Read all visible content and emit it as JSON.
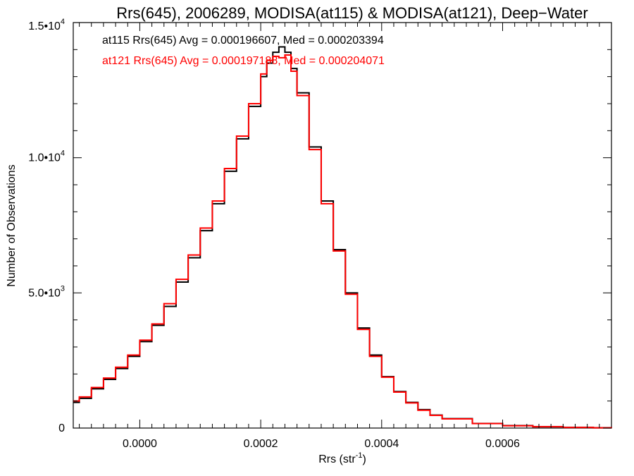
{
  "chart_data": {
    "type": "line",
    "title": "Rrs(645), 2006289, MODISA(at115) & MODISA(at121), Deep−Water",
    "xlabel": "Rrs (str",
    "xlabel_sup": "-1",
    "xlabel_end": ")",
    "ylabel": "Number of Observations",
    "xlim": [
      -0.00011,
      0.00078
    ],
    "ylim": [
      0,
      15000
    ],
    "x_ticks": [
      {
        "value": 0.0,
        "label": "0.0000"
      },
      {
        "value": 0.0002,
        "label": "0.0002"
      },
      {
        "value": 0.0004,
        "label": "0.0004"
      },
      {
        "value": 0.0006,
        "label": "0.0006"
      }
    ],
    "y_ticks": [
      {
        "value": 0,
        "label": "0"
      },
      {
        "value": 5000,
        "label": "5.0•10",
        "sup": "3"
      },
      {
        "value": 10000,
        "label": "1.0•10",
        "sup": "4"
      },
      {
        "value": 15000,
        "label": "1.5•10",
        "sup": "4"
      }
    ],
    "annotations": [
      {
        "text": "at115 Rrs(645) Avg = 0.000196607, Med = 0.000203394",
        "color": "#000000"
      },
      {
        "text": "at121 Rrs(645) Avg = 0.000197188, Med = 0.000204071",
        "color": "#ff0000"
      }
    ],
    "series": [
      {
        "color": "#000000",
        "x": [
          -0.00011,
          -0.0001,
          -8e-05,
          -6e-05,
          -4e-05,
          -2e-05,
          0.0,
          2e-05,
          4e-05,
          6e-05,
          8e-05,
          0.0001,
          0.00012,
          0.00014,
          0.00016,
          0.00018,
          0.0002,
          0.00021,
          0.00022,
          0.00023,
          0.00024,
          0.00025,
          0.00026,
          0.00028,
          0.0003,
          0.00032,
          0.00034,
          0.00036,
          0.00038,
          0.0004,
          0.00042,
          0.00044,
          0.00046,
          0.00048,
          0.0005,
          0.00055,
          0.0006,
          0.00065,
          0.0007,
          0.00075,
          0.00078
        ],
        "y": [
          950,
          1100,
          1450,
          1800,
          2200,
          2650,
          3200,
          3800,
          4500,
          5400,
          6300,
          7300,
          8300,
          9500,
          10700,
          11900,
          13000,
          13500,
          13900,
          14100,
          13900,
          13300,
          12400,
          10400,
          8400,
          6600,
          5000,
          3700,
          2700,
          1900,
          1350,
          950,
          680,
          480,
          350,
          170,
          90,
          50,
          25,
          10,
          5
        ]
      },
      {
        "color": "#ff0000",
        "x": [
          -0.00011,
          -0.0001,
          -8e-05,
          -6e-05,
          -4e-05,
          -2e-05,
          0.0,
          2e-05,
          4e-05,
          6e-05,
          8e-05,
          0.0001,
          0.00012,
          0.00014,
          0.00016,
          0.00018,
          0.0002,
          0.00021,
          0.00022,
          0.00023,
          0.00024,
          0.00025,
          0.00026,
          0.00028,
          0.0003,
          0.00032,
          0.00034,
          0.00036,
          0.00038,
          0.0004,
          0.00042,
          0.00044,
          0.00046,
          0.00048,
          0.0005,
          0.00055,
          0.0006,
          0.00065,
          0.0007,
          0.00075,
          0.00078
        ],
        "y": [
          1000,
          1150,
          1500,
          1850,
          2250,
          2700,
          3250,
          3850,
          4600,
          5500,
          6400,
          7400,
          8400,
          9600,
          10800,
          12000,
          13100,
          13600,
          13750,
          13700,
          13800,
          13200,
          12300,
          10300,
          8300,
          6550,
          4950,
          3650,
          2650,
          1880,
          1330,
          930,
          660,
          470,
          340,
          165,
          85,
          48,
          22,
          9,
          4
        ]
      }
    ]
  }
}
